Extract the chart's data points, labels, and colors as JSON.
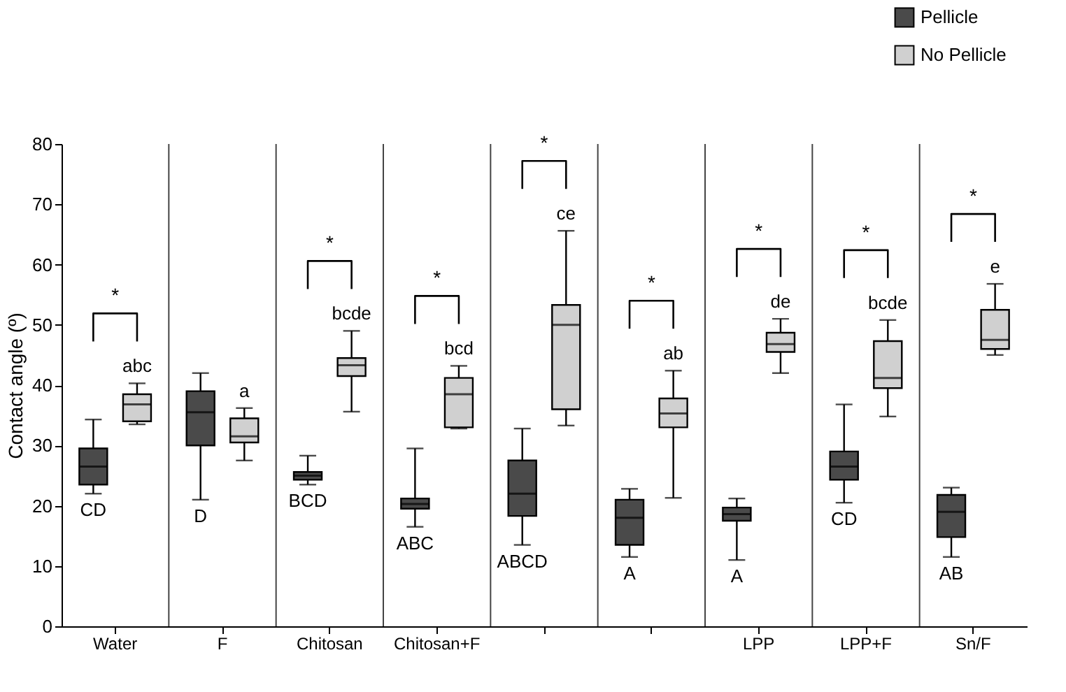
{
  "chart_data": {
    "type": "box",
    "categories": [
      "Water",
      "F",
      "Chitosan",
      "Chitosan+F",
      null,
      null,
      "LPP",
      "LPP+F",
      "Sn/F"
    ],
    "ylabel": "Contact angle (º)",
    "ylim": [
      0,
      80
    ],
    "yticks": [
      0,
      10,
      20,
      30,
      40,
      50,
      60,
      70,
      80
    ],
    "grid": "x",
    "legend": "top right",
    "series": [
      {
        "name": "Pellicle",
        "color": "#4a4a4a",
        "value_labels": [
          "CD",
          "D",
          "BCD",
          "ABC",
          "ABCD",
          "A",
          "A",
          "CD",
          "AB"
        ],
        "boxes": [
          {
            "low": 22,
            "q1": 23.5,
            "median": 26.5,
            "q3": 29.5,
            "high": 34.3
          },
          {
            "low": 21,
            "q1": 30,
            "median": 35.5,
            "q3": 39,
            "high": 42
          },
          {
            "low": 23.5,
            "q1": 24.3,
            "median": 25,
            "q3": 25.6,
            "high": 28.3
          },
          {
            "low": 16.5,
            "q1": 19.5,
            "median": 20.3,
            "q3": 21.2,
            "high": 29.5
          },
          {
            "low": 13.5,
            "q1": 18.3,
            "median": 22,
            "q3": 27.5,
            "high": 32.8
          },
          {
            "low": 11.5,
            "q1": 13.5,
            "median": 18,
            "q3": 21,
            "high": 22.8
          },
          {
            "low": 11,
            "q1": 17.5,
            "median": 18.6,
            "q3": 19.7,
            "high": 21.2
          },
          {
            "low": 20.5,
            "q1": 24.3,
            "median": 26.5,
            "q3": 29,
            "high": 36.8
          },
          {
            "low": 11.5,
            "q1": 14.8,
            "median": 19,
            "q3": 21.8,
            "high": 23
          }
        ]
      },
      {
        "name": "No Pellicle",
        "color": "#d0d0d0",
        "value_labels": [
          "abc",
          "a",
          "bcde",
          "bcd",
          "ce",
          "ab",
          "de",
          "bcde",
          "e"
        ],
        "boxes": [
          {
            "low": 33.5,
            "q1": 34,
            "median": 36.8,
            "q3": 38.5,
            "high": 40.3
          },
          {
            "low": 27.5,
            "q1": 30.5,
            "median": 31.5,
            "q3": 34.5,
            "high": 36.2
          },
          {
            "low": 35.6,
            "q1": 41.5,
            "median": 43.3,
            "q3": 44.5,
            "high": 49
          },
          {
            "low": 32.8,
            "q1": 33,
            "median": 38.5,
            "q3": 41.2,
            "high": 43.2
          },
          {
            "low": 33.3,
            "q1": 36,
            "median": 50,
            "q3": 53.3,
            "high": 65.6
          },
          {
            "low": 21.3,
            "q1": 33,
            "median": 35.3,
            "q3": 37.8,
            "high": 42.4
          },
          {
            "low": 42,
            "q1": 45.5,
            "median": 46.8,
            "q3": 48.7,
            "high": 51
          },
          {
            "low": 34.8,
            "q1": 39.5,
            "median": 41.2,
            "q3": 47.3,
            "high": 50.8
          },
          {
            "low": 45,
            "q1": 46,
            "median": 47.5,
            "q3": 52.5,
            "high": 56.8
          }
        ]
      }
    ],
    "annotations": [
      "*",
      null,
      "*",
      "*",
      "*",
      "*",
      "*",
      "*",
      "*"
    ]
  }
}
